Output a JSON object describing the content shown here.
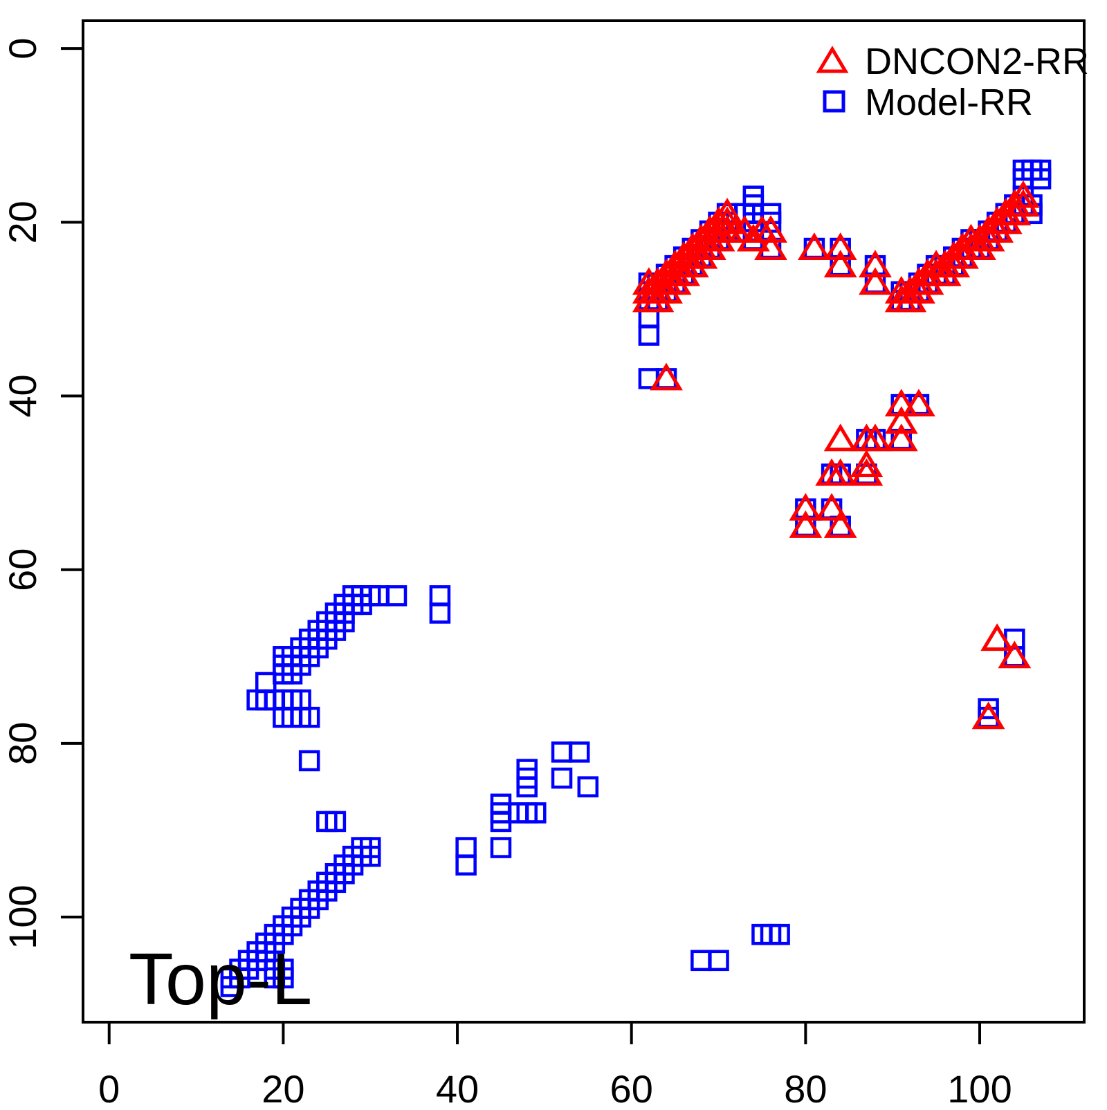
{
  "page": {
    "background": "#ffffff"
  },
  "chart_data": {
    "type": "scatter",
    "title": "",
    "xlabel": "",
    "ylabel": "",
    "corner_label": "Top-L",
    "x_ticks": [
      0,
      20,
      40,
      60,
      80,
      100
    ],
    "y_ticks": [
      0,
      20,
      40,
      60,
      80,
      100
    ],
    "xlim": [
      -3.0,
      112.0
    ],
    "ylim": [
      -3.2,
      112.1
    ],
    "y_axis_reversed": true,
    "grid": false,
    "legend_position": "top-right",
    "axis_color": "#000000",
    "series": [
      {
        "name": "DNCON2-RR",
        "marker": "triangle",
        "color": "#FF0000",
        "points": [
          [
            62,
            27
          ],
          [
            62,
            28
          ],
          [
            62,
            29
          ],
          [
            63,
            27
          ],
          [
            63,
            28
          ],
          [
            63,
            29
          ],
          [
            64,
            26
          ],
          [
            64,
            27
          ],
          [
            64,
            28
          ],
          [
            65,
            25
          ],
          [
            65,
            26
          ],
          [
            65,
            27
          ],
          [
            66,
            24
          ],
          [
            66,
            25
          ],
          [
            66,
            26
          ],
          [
            67,
            23
          ],
          [
            67,
            24
          ],
          [
            67,
            25
          ],
          [
            68,
            22
          ],
          [
            68,
            23
          ],
          [
            68,
            24
          ],
          [
            69,
            21
          ],
          [
            69,
            22
          ],
          [
            69,
            23
          ],
          [
            70,
            20
          ],
          [
            70,
            21
          ],
          [
            70,
            22
          ],
          [
            71,
            19
          ],
          [
            71,
            20
          ],
          [
            71,
            21
          ],
          [
            64,
            38
          ],
          [
            72,
            21
          ],
          [
            73,
            21
          ],
          [
            75,
            21
          ],
          [
            76,
            21
          ],
          [
            74,
            22
          ],
          [
            76,
            23
          ],
          [
            81,
            23
          ],
          [
            84,
            23
          ],
          [
            84,
            25
          ],
          [
            88,
            25
          ],
          [
            88,
            27
          ],
          [
            91,
            28
          ],
          [
            91,
            29
          ],
          [
            92,
            28
          ],
          [
            92,
            29
          ],
          [
            93,
            27
          ],
          [
            93,
            28
          ],
          [
            94,
            26
          ],
          [
            94,
            27
          ],
          [
            95,
            25
          ],
          [
            95,
            26
          ],
          [
            96,
            25
          ],
          [
            96,
            26
          ],
          [
            97,
            24
          ],
          [
            97,
            25
          ],
          [
            98,
            23
          ],
          [
            98,
            24
          ],
          [
            99,
            22
          ],
          [
            99,
            23
          ],
          [
            100,
            22
          ],
          [
            100,
            23
          ],
          [
            101,
            21
          ],
          [
            101,
            22
          ],
          [
            102,
            20
          ],
          [
            102,
            21
          ],
          [
            103,
            19
          ],
          [
            103,
            20
          ],
          [
            104,
            18
          ],
          [
            104,
            19
          ],
          [
            105,
            17
          ],
          [
            105,
            18
          ],
          [
            91,
            41
          ],
          [
            93,
            41
          ],
          [
            91,
            43
          ],
          [
            91,
            45
          ],
          [
            84,
            45
          ],
          [
            87,
            45
          ],
          [
            88,
            45
          ],
          [
            87,
            48
          ],
          [
            87,
            49
          ],
          [
            83,
            49
          ],
          [
            84,
            49
          ],
          [
            80,
            53
          ],
          [
            83,
            53
          ],
          [
            80,
            55
          ],
          [
            84,
            55
          ],
          [
            102,
            68
          ],
          [
            104,
            70
          ],
          [
            101,
            77
          ]
        ]
      },
      {
        "name": "Model-RR",
        "marker": "square",
        "color": "#0000FF",
        "points": [
          [
            62,
            27
          ],
          [
            62,
            28
          ],
          [
            62,
            29
          ],
          [
            63,
            27
          ],
          [
            63,
            28
          ],
          [
            63,
            29
          ],
          [
            64,
            26
          ],
          [
            64,
            27
          ],
          [
            64,
            28
          ],
          [
            65,
            25
          ],
          [
            65,
            26
          ],
          [
            65,
            27
          ],
          [
            66,
            24
          ],
          [
            66,
            25
          ],
          [
            66,
            26
          ],
          [
            67,
            23
          ],
          [
            67,
            24
          ],
          [
            67,
            25
          ],
          [
            68,
            22
          ],
          [
            68,
            23
          ],
          [
            68,
            24
          ],
          [
            69,
            21
          ],
          [
            69,
            22
          ],
          [
            69,
            23
          ],
          [
            70,
            20
          ],
          [
            70,
            21
          ],
          [
            70,
            22
          ],
          [
            71,
            19
          ],
          [
            71,
            20
          ],
          [
            71,
            21
          ],
          [
            62,
            31
          ],
          [
            62,
            33
          ],
          [
            62,
            38
          ],
          [
            64,
            38
          ],
          [
            74,
            17
          ],
          [
            74,
            18
          ],
          [
            73,
            19
          ],
          [
            74,
            19
          ],
          [
            76,
            19
          ],
          [
            76,
            20
          ],
          [
            74,
            21
          ],
          [
            74,
            22
          ],
          [
            76,
            23
          ],
          [
            81,
            23
          ],
          [
            84,
            23
          ],
          [
            84,
            25
          ],
          [
            88,
            25
          ],
          [
            88,
            27
          ],
          [
            91,
            28
          ],
          [
            91,
            29
          ],
          [
            92,
            28
          ],
          [
            92,
            29
          ],
          [
            93,
            27
          ],
          [
            93,
            28
          ],
          [
            94,
            26
          ],
          [
            94,
            27
          ],
          [
            95,
            25
          ],
          [
            95,
            26
          ],
          [
            96,
            25
          ],
          [
            96,
            26
          ],
          [
            97,
            24
          ],
          [
            97,
            25
          ],
          [
            98,
            23
          ],
          [
            98,
            24
          ],
          [
            99,
            22
          ],
          [
            99,
            23
          ],
          [
            100,
            22
          ],
          [
            100,
            23
          ],
          [
            101,
            21
          ],
          [
            101,
            22
          ],
          [
            102,
            20
          ],
          [
            102,
            21
          ],
          [
            103,
            19
          ],
          [
            103,
            20
          ],
          [
            104,
            18
          ],
          [
            104,
            19
          ],
          [
            105,
            17
          ],
          [
            105,
            18
          ],
          [
            105,
            14
          ],
          [
            106,
            14
          ],
          [
            107,
            14
          ],
          [
            105,
            15
          ],
          [
            107,
            15
          ],
          [
            106,
            18
          ],
          [
            106,
            19
          ],
          [
            91,
            41
          ],
          [
            93,
            41
          ],
          [
            91,
            45
          ],
          [
            87,
            45
          ],
          [
            88,
            45
          ],
          [
            87,
            49
          ],
          [
            83,
            49
          ],
          [
            84,
            49
          ],
          [
            80,
            53
          ],
          [
            83,
            53
          ],
          [
            80,
            55
          ],
          [
            84,
            55
          ],
          [
            104,
            68
          ],
          [
            104,
            70
          ],
          [
            101,
            76
          ],
          [
            101,
            77
          ],
          [
            20,
            70
          ],
          [
            20,
            71
          ],
          [
            20,
            72
          ],
          [
            21,
            70
          ],
          [
            21,
            71
          ],
          [
            21,
            72
          ],
          [
            22,
            69
          ],
          [
            22,
            70
          ],
          [
            22,
            71
          ],
          [
            23,
            68
          ],
          [
            23,
            69
          ],
          [
            23,
            70
          ],
          [
            24,
            67
          ],
          [
            24,
            68
          ],
          [
            24,
            69
          ],
          [
            25,
            66
          ],
          [
            25,
            67
          ],
          [
            25,
            68
          ],
          [
            26,
            65
          ],
          [
            26,
            66
          ],
          [
            26,
            67
          ],
          [
            27,
            64
          ],
          [
            27,
            65
          ],
          [
            27,
            66
          ],
          [
            28,
            63
          ],
          [
            28,
            64
          ],
          [
            29,
            63
          ],
          [
            29,
            64
          ],
          [
            30,
            63
          ],
          [
            31,
            63
          ],
          [
            33,
            63
          ],
          [
            38,
            63
          ],
          [
            38,
            65
          ],
          [
            18,
            73
          ],
          [
            17,
            75
          ],
          [
            18,
            75
          ],
          [
            19,
            75
          ],
          [
            20,
            75
          ],
          [
            21,
            75
          ],
          [
            22,
            75
          ],
          [
            20,
            77
          ],
          [
            21,
            77
          ],
          [
            22,
            77
          ],
          [
            23,
            77
          ],
          [
            23,
            82
          ],
          [
            14,
            108
          ],
          [
            14,
            107
          ],
          [
            15,
            107
          ],
          [
            15,
            106
          ],
          [
            16,
            106
          ],
          [
            16,
            105
          ],
          [
            17,
            105
          ],
          [
            17,
            104
          ],
          [
            18,
            104
          ],
          [
            18,
            103
          ],
          [
            19,
            103
          ],
          [
            19,
            102
          ],
          [
            20,
            102
          ],
          [
            20,
            101
          ],
          [
            21,
            101
          ],
          [
            21,
            100
          ],
          [
            22,
            100
          ],
          [
            22,
            99
          ],
          [
            23,
            99
          ],
          [
            23,
            98
          ],
          [
            24,
            98
          ],
          [
            24,
            97
          ],
          [
            25,
            97
          ],
          [
            25,
            96
          ],
          [
            26,
            96
          ],
          [
            26,
            95
          ],
          [
            27,
            95
          ],
          [
            27,
            94
          ],
          [
            28,
            94
          ],
          [
            28,
            93
          ],
          [
            29,
            93
          ],
          [
            29,
            92
          ],
          [
            19,
            106
          ],
          [
            20,
            106
          ],
          [
            19,
            107
          ],
          [
            20,
            107
          ],
          [
            30,
            92
          ],
          [
            30,
            93
          ],
          [
            25,
            89
          ],
          [
            26,
            89
          ],
          [
            52,
            81
          ],
          [
            54,
            81
          ],
          [
            48,
            83
          ],
          [
            48,
            84
          ],
          [
            48,
            85
          ],
          [
            52,
            84
          ],
          [
            55,
            85
          ],
          [
            45,
            87
          ],
          [
            45,
            88
          ],
          [
            45,
            89
          ],
          [
            47,
            88
          ],
          [
            48,
            88
          ],
          [
            49,
            88
          ],
          [
            45,
            92
          ],
          [
            41,
            92
          ],
          [
            41,
            94
          ],
          [
            68,
            105
          ],
          [
            70,
            105
          ],
          [
            75,
            102
          ],
          [
            76,
            102
          ],
          [
            77,
            102
          ]
        ]
      }
    ]
  }
}
